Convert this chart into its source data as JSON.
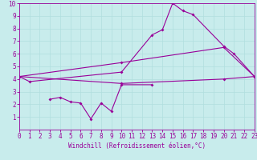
{
  "xlabel": "Windchill (Refroidissement éolien,°C)",
  "xlim": [
    0,
    23
  ],
  "ylim": [
    0,
    10
  ],
  "xticks": [
    0,
    1,
    2,
    3,
    4,
    5,
    6,
    7,
    8,
    9,
    10,
    11,
    12,
    13,
    14,
    15,
    16,
    17,
    18,
    19,
    20,
    21,
    22,
    23
  ],
  "yticks": [
    1,
    2,
    3,
    4,
    5,
    6,
    7,
    8,
    9,
    10
  ],
  "bg_color": "#c8ecec",
  "line_color": "#990099",
  "grid_color": "#b0dede",
  "line1_x": [
    0,
    1,
    10,
    13,
    14,
    15,
    16,
    17,
    20,
    21,
    23
  ],
  "line1_y": [
    4.2,
    3.8,
    4.55,
    7.5,
    7.9,
    10.0,
    9.4,
    9.1,
    6.6,
    6.0,
    4.2
  ],
  "line2_x": [
    0,
    10,
    20,
    23
  ],
  "line2_y": [
    4.2,
    5.3,
    6.5,
    4.2
  ],
  "line3_x": [
    0,
    10,
    20,
    23
  ],
  "line3_y": [
    4.2,
    3.65,
    4.0,
    4.2
  ],
  "line4_x": [
    3,
    4,
    5,
    6,
    7,
    8,
    9,
    10,
    13
  ],
  "line4_y": [
    2.4,
    2.55,
    2.2,
    2.1,
    0.85,
    2.1,
    1.45,
    3.55,
    3.55
  ],
  "tick_fontsize": 5.5,
  "xlabel_fontsize": 5.5,
  "marker_size": 2.0,
  "line_width": 0.8
}
